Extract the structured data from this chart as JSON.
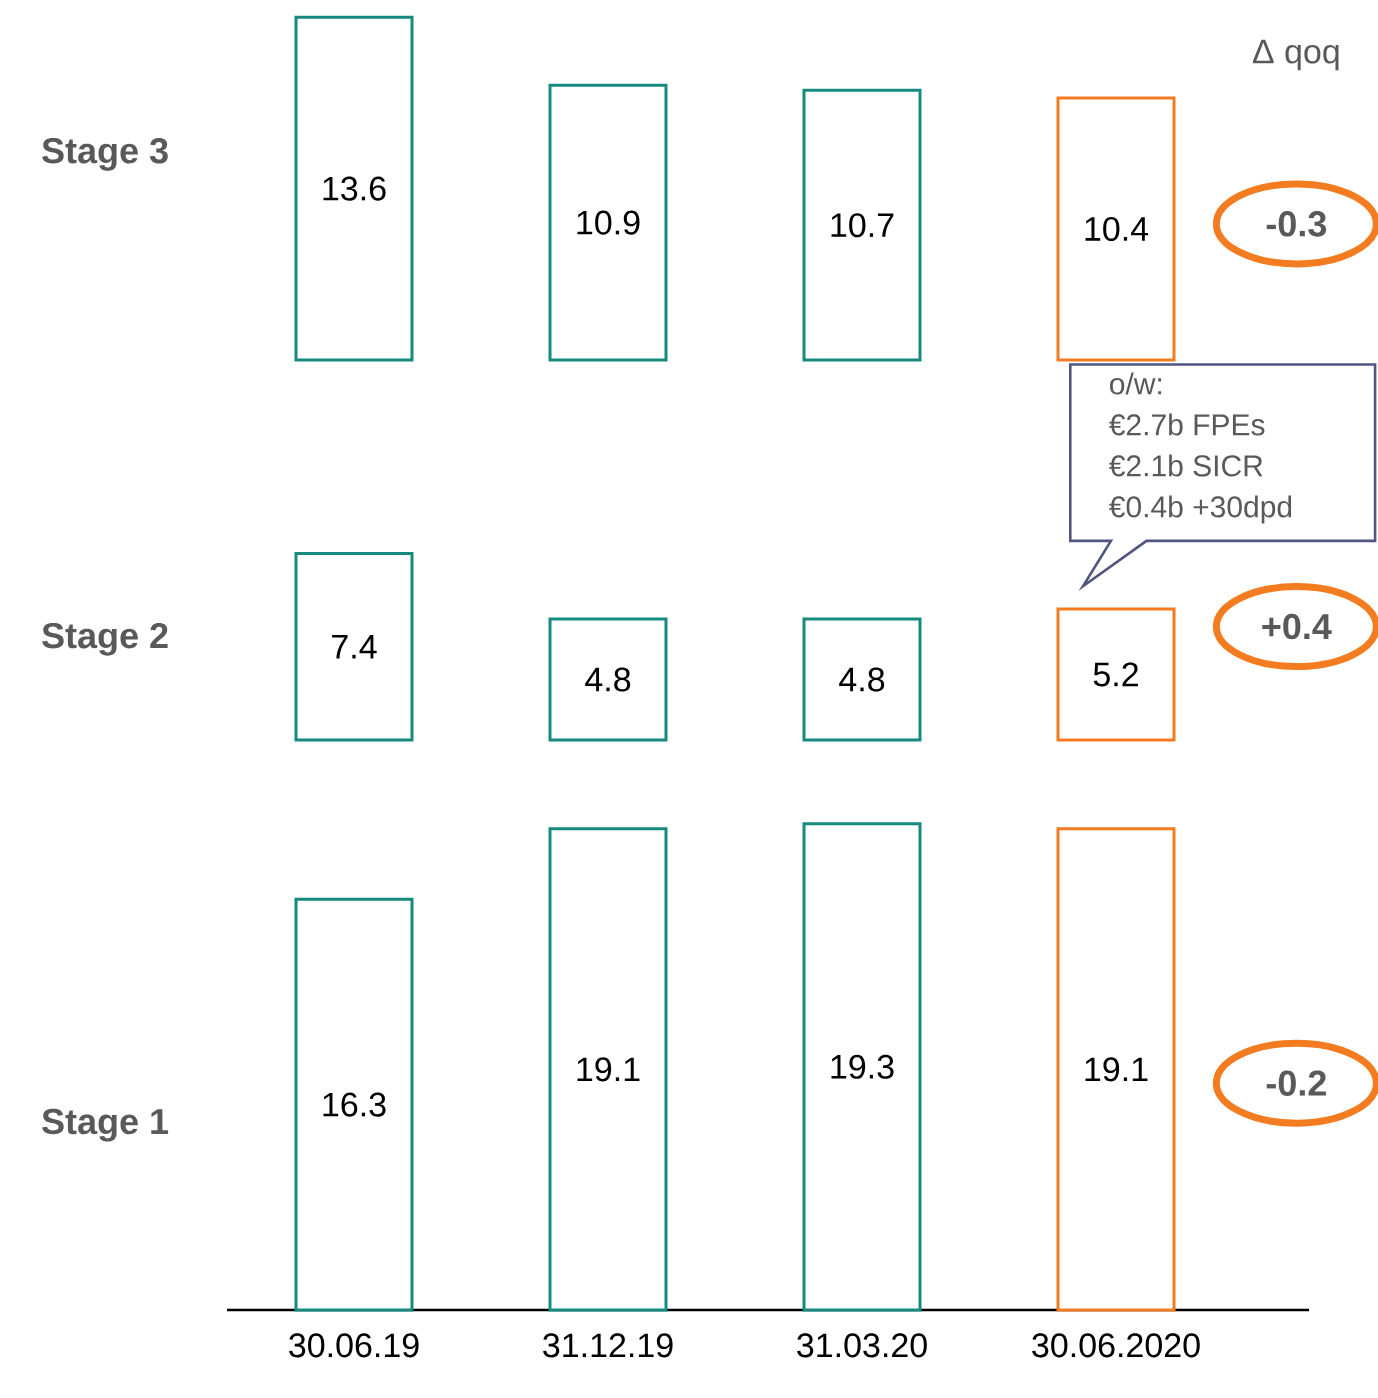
{
  "chart_data": [
    {
      "type": "bar",
      "title": "Δ qoq",
      "ylabel": "Stage 3",
      "categories": [
        "30.06.19",
        "31.12.19",
        "31.03.20",
        "30.06.2020"
      ],
      "values": [
        13.6,
        10.9,
        10.7,
        10.4
      ],
      "colors": [
        "#178a80",
        "#178a80",
        "#178a80",
        "#f47c20"
      ],
      "data_labels": true,
      "tick_labels": false,
      "annotations": [
        "-0.3"
      ]
    },
    {
      "type": "bar",
      "ylabel": "Stage 2",
      "categories": [
        "30.06.19",
        "31.12.19",
        "31.03.20",
        "30.06.2020"
      ],
      "values": [
        7.4,
        4.8,
        4.8,
        5.2
      ],
      "colors": [
        "#178a80",
        "#178a80",
        "#178a80",
        "#f47c20"
      ],
      "data_labels": true,
      "tick_labels": false,
      "annotations": [
        "+0.4",
        "o/w:",
        "€2.7b FPEs",
        "€2.1b SICR",
        "€0.4b +30dpd"
      ]
    },
    {
      "type": "bar",
      "ylabel": "Stage 1",
      "categories": [
        "30.06.19",
        "31.12.19",
        "31.03.20",
        "30.06.2020"
      ],
      "values": [
        16.3,
        19.1,
        19.3,
        19.1
      ],
      "colors": [
        "#178a80",
        "#178a80",
        "#178a80",
        "#f47c20"
      ],
      "data_labels": true,
      "annotations": [
        "-0.2"
      ]
    }
  ]
}
